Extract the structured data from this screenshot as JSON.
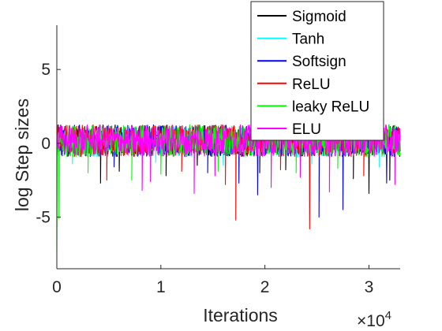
{
  "chart_data": {
    "type": "line",
    "xlabel": "Iterations",
    "ylabel": "log Step sizes",
    "x_multiplier_label": {
      "base": "×10",
      "exponent": "4"
    },
    "xlim": [
      0,
      3.3
    ],
    "ylim": [
      -8.5,
      8
    ],
    "x_ticks": [
      0,
      1,
      2,
      3
    ],
    "x_tick_labels": [
      "0",
      "1",
      "2",
      "3"
    ],
    "y_ticks": [
      5,
      0,
      -5
    ],
    "y_tick_labels": [
      "5",
      "0",
      "-5"
    ],
    "grid": false,
    "legend_position": "top-right",
    "x_units_note": "iterations x 10^4",
    "noise_band": {
      "upper": 1.25,
      "lower": -0.9
    },
    "series": [
      {
        "name": "Sigmoid",
        "color": "#000000",
        "dips": [
          [
            0.42,
            -2.7
          ],
          [
            0.6,
            -1.9
          ],
          [
            1.05,
            -2.2
          ],
          [
            1.35,
            -1.5
          ],
          [
            1.95,
            -2.0
          ],
          [
            2.2,
            -1.8
          ],
          [
            2.85,
            -2.4
          ],
          [
            3.0,
            -3.4
          ],
          [
            3.2,
            -2.5
          ]
        ]
      },
      {
        "name": "Tanh",
        "color": "#00ffff",
        "dips": [
          [
            0.15,
            -1.4
          ],
          [
            0.95,
            -1.3
          ],
          [
            1.6,
            -1.5
          ],
          [
            2.45,
            -1.4
          ],
          [
            3.1,
            -1.6
          ]
        ]
      },
      {
        "name": "Softsign",
        "color": "#0000ff",
        "dips": [
          [
            0.55,
            -1.6
          ],
          [
            1.45,
            -2.0
          ],
          [
            1.75,
            -2.7
          ],
          [
            1.93,
            -3.5
          ],
          [
            2.52,
            -5.0
          ],
          [
            2.75,
            -4.5
          ],
          [
            3.17,
            -2.7
          ]
        ]
      },
      {
        "name": "ReLU",
        "color": "#ff0000",
        "dips": [
          [
            0.48,
            -2.5
          ],
          [
            1.2,
            -1.9
          ],
          [
            1.62,
            -2.8
          ],
          [
            1.72,
            -5.2
          ],
          [
            2.15,
            -1.8
          ],
          [
            2.43,
            -5.8
          ],
          [
            2.95,
            -2.2
          ]
        ]
      },
      {
        "name": "leaky ReLU",
        "color": "#00ff00",
        "dips": [
          [
            0.0,
            -7.3
          ],
          [
            0.02,
            -5.1
          ],
          [
            0.3,
            -2.0
          ],
          [
            0.72,
            -2.5
          ],
          [
            1.0,
            -2.1
          ],
          [
            1.55,
            -1.9
          ],
          [
            2.3,
            -2.0
          ],
          [
            2.7,
            -1.7
          ]
        ]
      },
      {
        "name": "ELU",
        "color": "#ff00ff",
        "dips": [
          [
            0.82,
            -3.2
          ],
          [
            0.9,
            -2.6
          ],
          [
            1.32,
            -3.4
          ],
          [
            1.52,
            -2.2
          ],
          [
            2.06,
            -3.0
          ],
          [
            2.34,
            -2.3
          ],
          [
            2.62,
            -3.3
          ],
          [
            3.25,
            -2.8
          ]
        ]
      }
    ]
  }
}
